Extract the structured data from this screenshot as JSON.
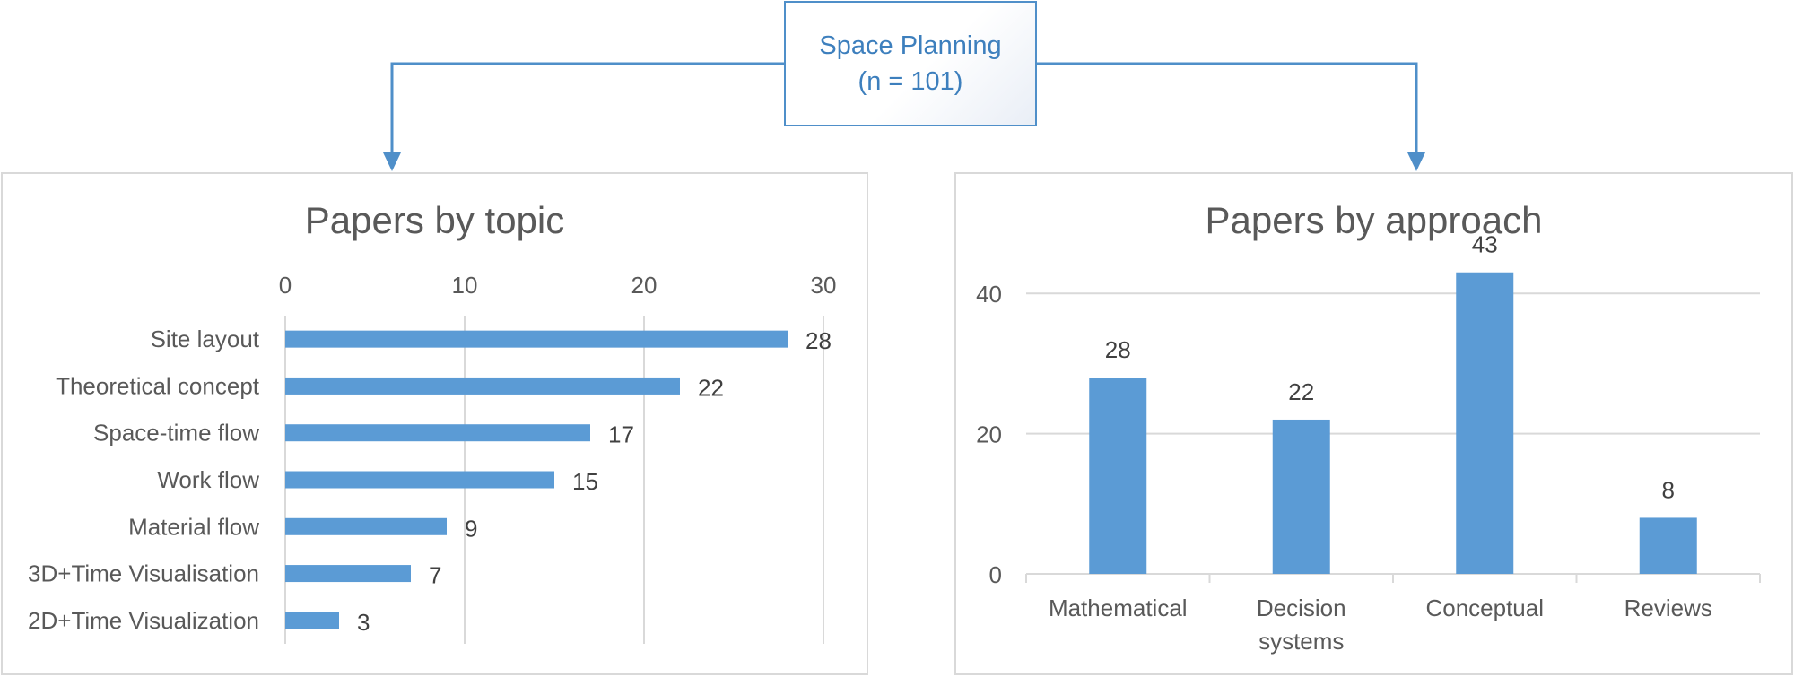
{
  "root": {
    "title": "Space Planning",
    "subtitle": "(n = 101)"
  },
  "colors": {
    "bar": "#5b9bd5",
    "connector": "#4f8fc9",
    "grid": "#d9d9d9",
    "text": "#595959",
    "label": "#404040"
  },
  "chart_data": [
    {
      "type": "bar",
      "orientation": "horizontal",
      "title": "Papers by topic",
      "categories": [
        "Site layout",
        "Theoretical concept",
        "Space-time flow",
        "Work flow",
        "Material flow",
        "3D+Time Visualisation",
        "2D+Time Visualization"
      ],
      "values": [
        28,
        22,
        17,
        15,
        9,
        7,
        3
      ],
      "xlim": [
        0,
        30
      ],
      "x_ticks": [
        0,
        10,
        20,
        30
      ],
      "axis_position": "top",
      "grid": true,
      "data_labels": true
    },
    {
      "type": "bar",
      "orientation": "vertical",
      "title": "Papers by approach",
      "categories": [
        "Mathematical",
        "Decision systems",
        "Conceptual",
        "Reviews"
      ],
      "values": [
        28,
        22,
        43,
        8
      ],
      "ylim": [
        0,
        50
      ],
      "y_ticks": [
        0,
        20,
        40
      ],
      "grid": true,
      "data_labels": true
    }
  ]
}
